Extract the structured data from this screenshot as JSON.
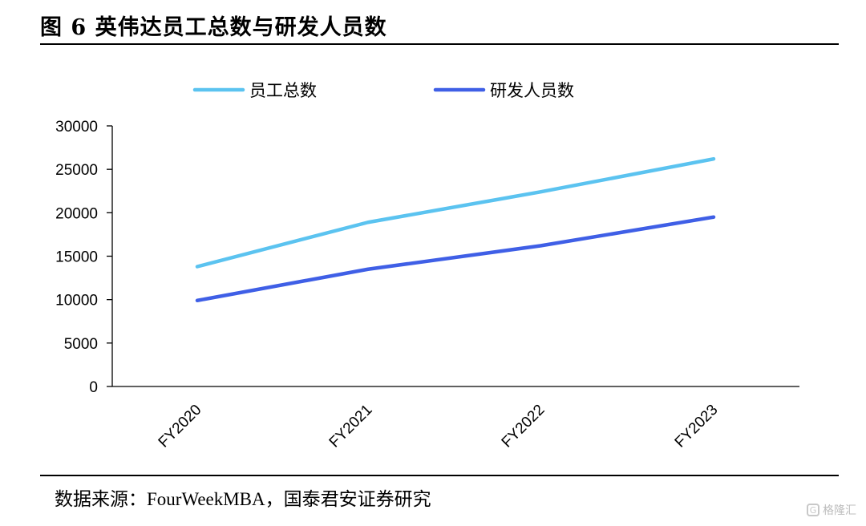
{
  "figure": {
    "title": "图 6 英伟达员工总数与研发人员数",
    "source": "数据来源：FourWeekMBA，国泰君安证券研究",
    "watermark": "格隆汇"
  },
  "chart_data": {
    "type": "line",
    "categories": [
      "FY2020",
      "FY2021",
      "FY2022",
      "FY2023"
    ],
    "series": [
      {
        "name": "员工总数",
        "values": [
          13800,
          18900,
          22400,
          26200
        ],
        "color": "#5bc3f0"
      },
      {
        "name": "研发人员数",
        "values": [
          9900,
          13500,
          16200,
          19500
        ],
        "color": "#3f5fe6"
      }
    ],
    "ylim": [
      0,
      30000
    ],
    "yticks": [
      0,
      5000,
      10000,
      15000,
      20000,
      25000,
      30000
    ],
    "legend_position": "top",
    "grid": false
  }
}
